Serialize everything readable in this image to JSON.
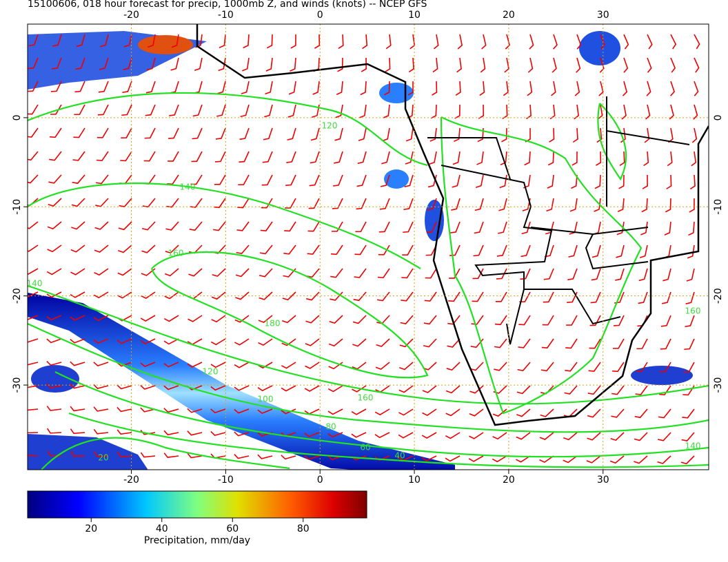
{
  "title": "15100606, 018 hour forecast for precip, 1000mb Z, and winds (knots) -- NCEP GFS",
  "map": {
    "xlim": [
      -31,
      41.2
    ],
    "ylim": [
      -39.5,
      10.5
    ],
    "xticks": [
      -20,
      -10,
      0,
      10,
      20,
      30
    ],
    "yticks": [
      0,
      -10,
      -20,
      -30
    ],
    "contour_labels": [
      120,
      140,
      160,
      140,
      180,
      160,
      120,
      100,
      160,
      80,
      60,
      40,
      140,
      20
    ]
  },
  "colorbar": {
    "label": "Precipitation, mm/day",
    "lim": [
      2,
      98
    ],
    "ticks": [
      20,
      40,
      60,
      80
    ]
  }
}
